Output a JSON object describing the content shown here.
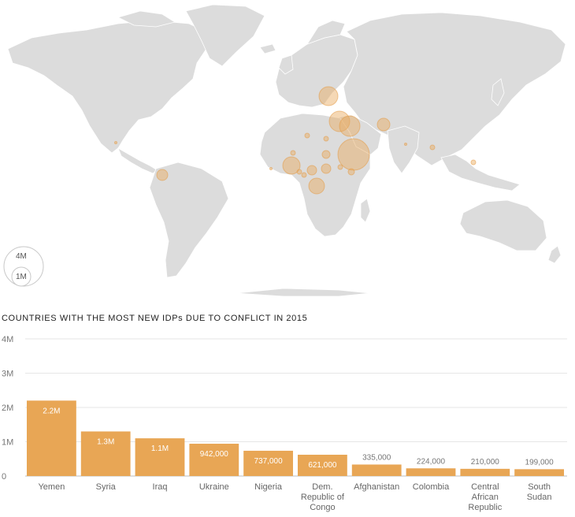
{
  "map": {
    "legend": {
      "large_label": "4M",
      "small_label": "1M"
    },
    "bubble_color": "#e9a95a",
    "land_color": "#dcdcdc"
  },
  "chart_data": {
    "type": "bar",
    "title": "COUNTRIES WITH THE MOST NEW IDPs DUE TO CONFLICT IN 2015",
    "categories": [
      "Yemen",
      "Syria",
      "Iraq",
      "Ukraine",
      "Nigeria",
      "Dem. Republic of Congo",
      "Afghanistan",
      "Colombia",
      "Central African Republic",
      "South Sudan"
    ],
    "category_lines": [
      [
        "Yemen"
      ],
      [
        "Syria"
      ],
      [
        "Iraq"
      ],
      [
        "Ukraine"
      ],
      [
        "Nigeria"
      ],
      [
        "Dem.",
        "Republic of",
        "Congo"
      ],
      [
        "Afghanistan"
      ],
      [
        "Colombia"
      ],
      [
        "Central",
        "African",
        "Republic"
      ],
      [
        "South",
        "Sudan"
      ]
    ],
    "values": [
      2200000,
      1300000,
      1100000,
      942000,
      737000,
      621000,
      335000,
      224000,
      210000,
      199000
    ],
    "data_labels": [
      "2.2M",
      "1.3M",
      "1.1M",
      "942,000",
      "737,000",
      "621,000",
      "335,000",
      "224,000",
      "210,000",
      "199,000"
    ],
    "label_inside": [
      true,
      true,
      true,
      true,
      true,
      true,
      false,
      false,
      false,
      false
    ],
    "yticks": [
      {
        "value": 0,
        "label": "0"
      },
      {
        "value": 1000000,
        "label": "1M"
      },
      {
        "value": 2000000,
        "label": "2M"
      },
      {
        "value": 3000000,
        "label": "3M"
      },
      {
        "value": 4000000,
        "label": "4M"
      }
    ],
    "ylim": [
      0,
      4000000
    ],
    "xlabel": "",
    "ylabel": "",
    "bar_color": "#e8a655",
    "inside_label_color": "#ffffff",
    "outside_label_color": "#777777",
    "grid": true
  }
}
